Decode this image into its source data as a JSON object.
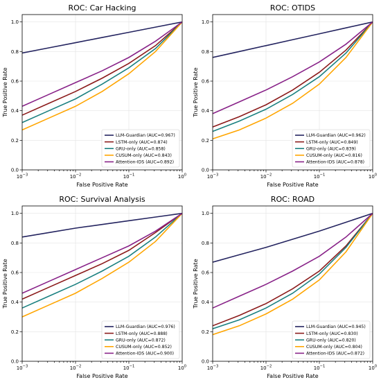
{
  "chart_data": [
    {
      "type": "line",
      "title": "ROC: Car Hacking",
      "xlabel": "False Positive Rate",
      "ylabel": "True Positive Rate",
      "xscale": "log",
      "xlim": [
        0.001,
        1
      ],
      "ylim": [
        0,
        1.05
      ],
      "grid": true,
      "legend": "lower-right",
      "xticks": [
        {
          "value": 0.001,
          "base": "10",
          "exp": "−3"
        },
        {
          "value": 0.01,
          "base": "10",
          "exp": "−2"
        },
        {
          "value": 0.1,
          "base": "10",
          "exp": "−1"
        },
        {
          "value": 1,
          "base": "10",
          "exp": "0"
        }
      ],
      "yticks": [
        {
          "value": 0,
          "label": "0.0"
        },
        {
          "value": 0.2,
          "label": "0.2"
        },
        {
          "value": 0.4,
          "label": "0.4"
        },
        {
          "value": 0.6,
          "label": "0.6"
        },
        {
          "value": 0.8,
          "label": "0.8"
        },
        {
          "value": 1.0,
          "label": "1.0"
        }
      ],
      "x": [
        0.001,
        0.00316,
        0.01,
        0.0316,
        0.1,
        0.316,
        1
      ],
      "series": [
        {
          "name": "LLM-Guardian (AUC=0.967)",
          "color": "#23235f",
          "values": [
            0.79,
            0.825,
            0.86,
            0.895,
            0.93,
            0.965,
            1.0
          ]
        },
        {
          "name": "LSTM-only (AUC=0.874)",
          "color": "#8b1a1a",
          "values": [
            0.37,
            0.45,
            0.53,
            0.62,
            0.72,
            0.84,
            1.0
          ]
        },
        {
          "name": "GRU-only (AUC=0.858)",
          "color": "#1a8080",
          "values": [
            0.32,
            0.4,
            0.48,
            0.58,
            0.69,
            0.82,
            1.0
          ]
        },
        {
          "name": "CUSUM-only (AUC=0.843)",
          "color": "#ffa500",
          "values": [
            0.27,
            0.35,
            0.43,
            0.53,
            0.65,
            0.8,
            1.0
          ]
        },
        {
          "name": "Attention-IDS (AUC=0.892)",
          "color": "#882288",
          "values": [
            0.43,
            0.51,
            0.59,
            0.67,
            0.76,
            0.87,
            1.0
          ]
        }
      ]
    },
    {
      "type": "line",
      "title": "ROC: OTIDS",
      "xlabel": "False Positive Rate",
      "ylabel": "True Positive Rate",
      "xscale": "log",
      "xlim": [
        0.001,
        1
      ],
      "ylim": [
        0,
        1.05
      ],
      "grid": true,
      "legend": "lower-right",
      "xticks": [
        {
          "value": 0.001,
          "base": "10",
          "exp": "−3"
        },
        {
          "value": 0.01,
          "base": "10",
          "exp": "−2"
        },
        {
          "value": 0.1,
          "base": "10",
          "exp": "−1"
        },
        {
          "value": 1,
          "base": "10",
          "exp": "0"
        }
      ],
      "yticks": [
        {
          "value": 0,
          "label": "0.0"
        },
        {
          "value": 0.2,
          "label": "0.2"
        },
        {
          "value": 0.4,
          "label": "0.4"
        },
        {
          "value": 0.6,
          "label": "0.6"
        },
        {
          "value": 0.8,
          "label": "0.8"
        },
        {
          "value": 1.0,
          "label": "1.0"
        }
      ],
      "x": [
        0.001,
        0.00316,
        0.01,
        0.0316,
        0.1,
        0.316,
        1
      ],
      "series": [
        {
          "name": "LLM-Guardian (AUC=0.962)",
          "color": "#23235f",
          "values": [
            0.76,
            0.8,
            0.84,
            0.88,
            0.92,
            0.96,
            1.0
          ]
        },
        {
          "name": "LSTM-only (AUC=0.849)",
          "color": "#8b1a1a",
          "values": [
            0.29,
            0.36,
            0.44,
            0.54,
            0.66,
            0.81,
            1.0
          ]
        },
        {
          "name": "GRU-only (AUC=0.839)",
          "color": "#1a8080",
          "values": [
            0.26,
            0.33,
            0.41,
            0.51,
            0.63,
            0.79,
            1.0
          ]
        },
        {
          "name": "CUSUM-only (AUC=0.816)",
          "color": "#ffa500",
          "values": [
            0.21,
            0.27,
            0.35,
            0.45,
            0.58,
            0.76,
            1.0
          ]
        },
        {
          "name": "Attention-IDS (AUC=0.878)",
          "color": "#882288",
          "values": [
            0.38,
            0.46,
            0.54,
            0.63,
            0.73,
            0.85,
            1.0
          ]
        }
      ]
    },
    {
      "type": "line",
      "title": "ROC: Survival Analysis",
      "xlabel": "False Positive Rate",
      "ylabel": "True Positive Rate",
      "xscale": "log",
      "xlim": [
        0.001,
        1
      ],
      "ylim": [
        0,
        1.05
      ],
      "grid": true,
      "legend": "lower-right",
      "xticks": [
        {
          "value": 0.001,
          "base": "10",
          "exp": "−3"
        },
        {
          "value": 0.01,
          "base": "10",
          "exp": "−2"
        },
        {
          "value": 0.1,
          "base": "10",
          "exp": "−1"
        },
        {
          "value": 1,
          "base": "10",
          "exp": "0"
        }
      ],
      "yticks": [
        {
          "value": 0,
          "label": "0.0"
        },
        {
          "value": 0.2,
          "label": "0.2"
        },
        {
          "value": 0.4,
          "label": "0.4"
        },
        {
          "value": 0.6,
          "label": "0.6"
        },
        {
          "value": 0.8,
          "label": "0.8"
        },
        {
          "value": 1.0,
          "label": "1.0"
        }
      ],
      "x": [
        0.001,
        0.00316,
        0.01,
        0.0316,
        0.1,
        0.316,
        1
      ],
      "series": [
        {
          "name": "LLM-Guardian (AUC=0.976)",
          "color": "#23235f",
          "values": [
            0.84,
            0.87,
            0.9,
            0.925,
            0.95,
            0.975,
            1.0
          ]
        },
        {
          "name": "LSTM-only (AUC=0.888)",
          "color": "#8b1a1a",
          "values": [
            0.42,
            0.5,
            0.58,
            0.66,
            0.75,
            0.87,
            1.0
          ]
        },
        {
          "name": "GRU-only (AUC=0.872)",
          "color": "#1a8080",
          "values": [
            0.36,
            0.44,
            0.52,
            0.61,
            0.71,
            0.84,
            1.0
          ]
        },
        {
          "name": "CUSUM-only (AUC=0.852)",
          "color": "#ffa500",
          "values": [
            0.3,
            0.38,
            0.46,
            0.56,
            0.67,
            0.81,
            1.0
          ]
        },
        {
          "name": "Attention-IDS (AUC=0.900)",
          "color": "#882288",
          "values": [
            0.46,
            0.54,
            0.62,
            0.7,
            0.78,
            0.88,
            1.0
          ]
        }
      ]
    },
    {
      "type": "line",
      "title": "ROC: ROAD",
      "xlabel": "False Positive Rate",
      "ylabel": "True Positive Rate",
      "xscale": "log",
      "xlim": [
        0.001,
        1
      ],
      "ylim": [
        0,
        1.05
      ],
      "grid": true,
      "legend": "lower-right",
      "xticks": [
        {
          "value": 0.001,
          "base": "10",
          "exp": "−3"
        },
        {
          "value": 0.01,
          "base": "10",
          "exp": "−2"
        },
        {
          "value": 0.1,
          "base": "10",
          "exp": "−1"
        },
        {
          "value": 1,
          "base": "10",
          "exp": "0"
        }
      ],
      "yticks": [
        {
          "value": 0,
          "label": "0.0"
        },
        {
          "value": 0.2,
          "label": "0.2"
        },
        {
          "value": 0.4,
          "label": "0.4"
        },
        {
          "value": 0.6,
          "label": "0.6"
        },
        {
          "value": 0.8,
          "label": "0.8"
        },
        {
          "value": 1.0,
          "label": "1.0"
        }
      ],
      "x": [
        0.001,
        0.00316,
        0.01,
        0.0316,
        0.1,
        0.316,
        1
      ],
      "series": [
        {
          "name": "LLM-Guardian (AUC=0.945)",
          "color": "#23235f",
          "values": [
            0.67,
            0.72,
            0.77,
            0.825,
            0.88,
            0.94,
            1.0
          ]
        },
        {
          "name": "LSTM-only (AUC=0.830)",
          "color": "#8b1a1a",
          "values": [
            0.24,
            0.31,
            0.39,
            0.49,
            0.61,
            0.78,
            1.0
          ]
        },
        {
          "name": "GRU-only (AUC=0.820)",
          "color": "#1a8080",
          "values": [
            0.22,
            0.28,
            0.36,
            0.46,
            0.59,
            0.77,
            1.0
          ]
        },
        {
          "name": "CUSUM-only (AUC=0.804)",
          "color": "#ffa500",
          "values": [
            0.18,
            0.24,
            0.32,
            0.42,
            0.55,
            0.74,
            1.0
          ]
        },
        {
          "name": "Attention-IDS (AUC=0.872)",
          "color": "#882288",
          "values": [
            0.36,
            0.44,
            0.52,
            0.61,
            0.71,
            0.84,
            1.0
          ]
        }
      ]
    }
  ]
}
